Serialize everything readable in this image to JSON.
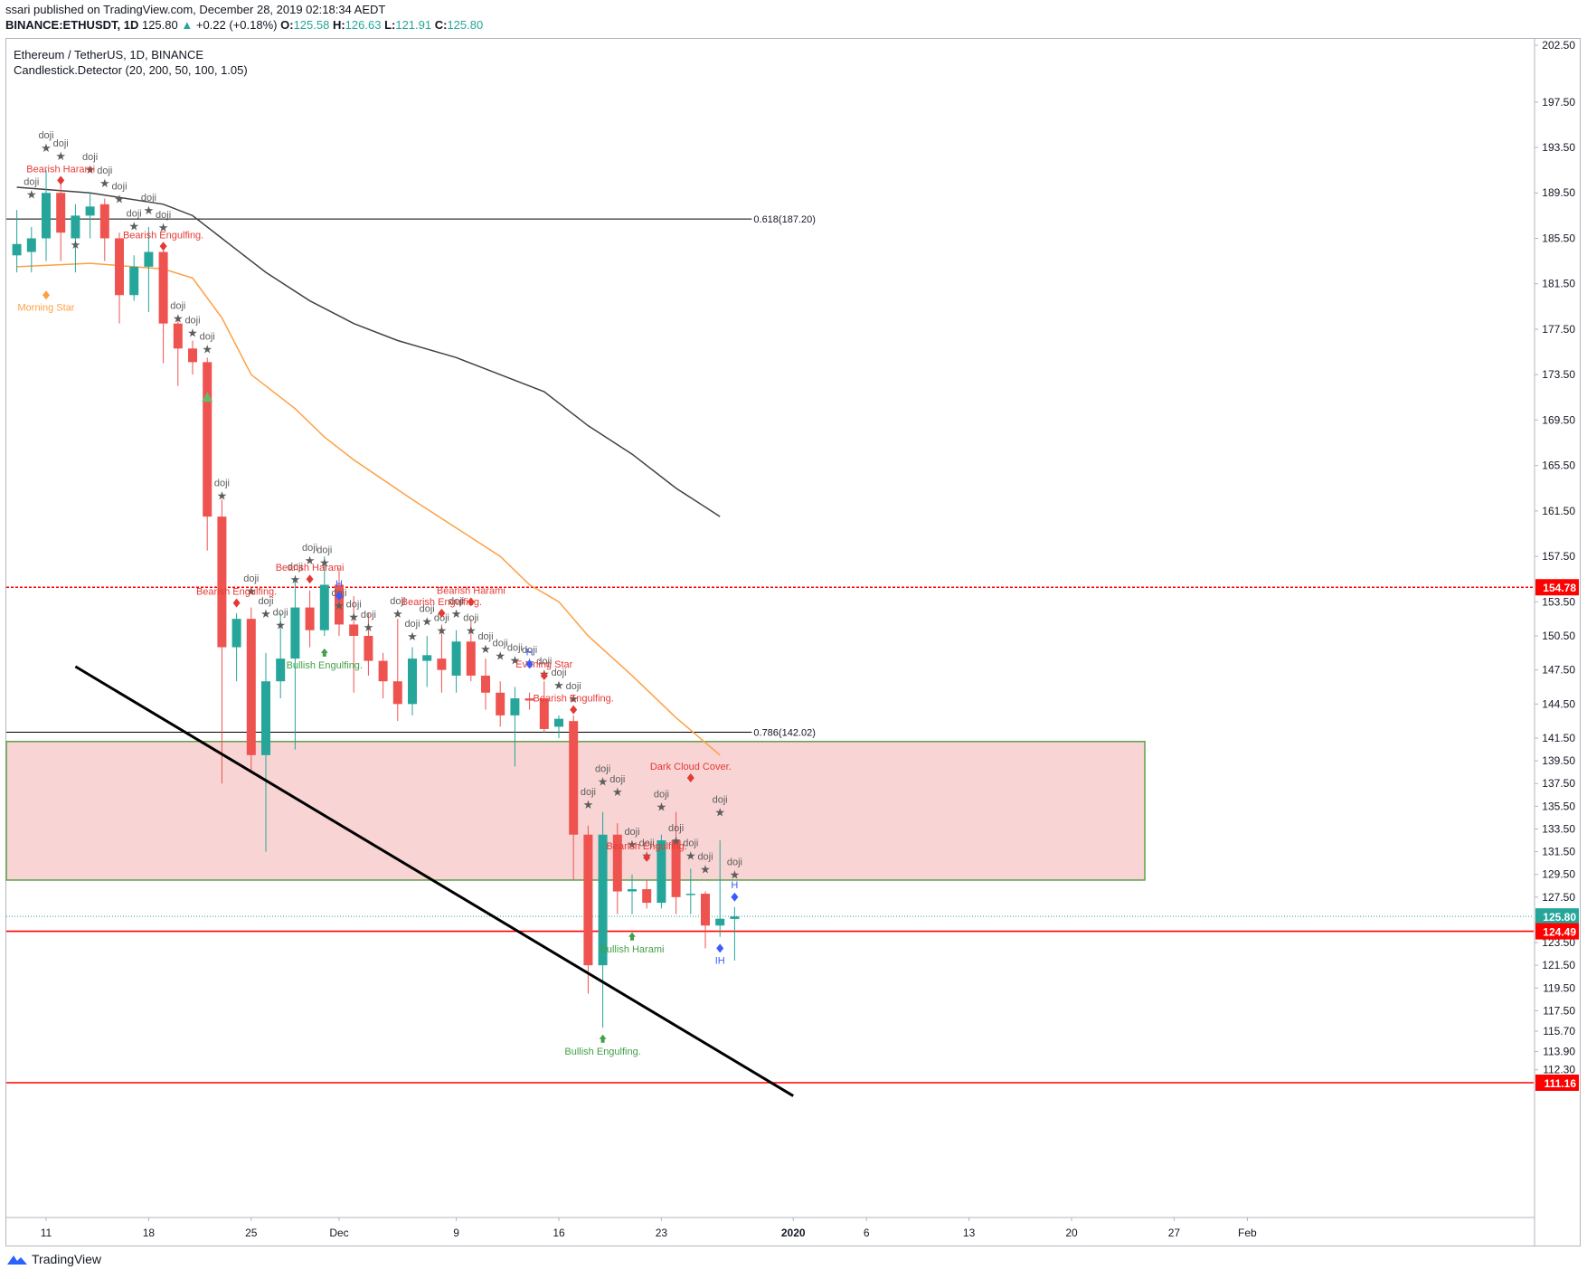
{
  "header": {
    "publisher_line": "ssari published on TradingView.com, December 28, 2019 02:18:34 AEDT",
    "symbol": "BINANCE:ETHUSDT, 1D",
    "last": "125.80",
    "change": "+0.22 (+0.18%)",
    "ohlc": [
      {
        "k": "O:",
        "v": "125.58"
      },
      {
        "k": "H:",
        "v": "126.63"
      },
      {
        "k": "L:",
        "v": "121.91"
      },
      {
        "k": "C:",
        "v": "125.80"
      }
    ]
  },
  "footer": {
    "brand": "TradingView"
  },
  "colors": {
    "bull": "#26a69a",
    "bear": "#ef5350",
    "ma_orange": "#ff9f43",
    "ma_dark": "#424242",
    "zone_fill": "#f5c6c6",
    "zone_border": "#5ea04a",
    "hline_red": "#ff0000",
    "pattern_red": "#e53935",
    "pattern_green": "#43a047",
    "pattern_blue": "#3d5afe",
    "doji_gray": "#5d5d5d"
  },
  "chart_data": {
    "type": "candlestick",
    "title": "Ethereum / TetherUS, 1D, BINANCE",
    "subtitle": "Candlestick.Detector (20, 200, 50, 100, 1.05)",
    "ylim": [
      110,
      204
    ],
    "y_ticks": [
      "202.50",
      "197.50",
      "193.50",
      "189.50",
      "185.50",
      "181.50",
      "177.50",
      "173.50",
      "169.50",
      "165.50",
      "161.50",
      "157.50",
      "153.50",
      "150.50",
      "147.50",
      "144.50",
      "141.50",
      "139.50",
      "137.50",
      "135.50",
      "133.50",
      "131.50",
      "129.50",
      "127.50",
      "123.50",
      "121.50",
      "119.50",
      "117.50",
      "115.70",
      "113.90",
      "112.30"
    ],
    "y_badges": [
      {
        "label": "154.78",
        "value": 154.78,
        "color": "#ff0000"
      },
      {
        "label": "125.80",
        "value": 125.8,
        "color": "#26a69a"
      },
      {
        "label": "124.49",
        "value": 124.49,
        "color": "#ff0000"
      },
      {
        "label": "111.16",
        "value": 111.16,
        "color": "#ff0000"
      }
    ],
    "x_ticks": [
      {
        "label": "11",
        "day": 0
      },
      {
        "label": "18",
        "day": 7
      },
      {
        "label": "25",
        "day": 14
      },
      {
        "label": "Dec",
        "day": 20
      },
      {
        "label": "9",
        "day": 28
      },
      {
        "label": "16",
        "day": 35
      },
      {
        "label": "23",
        "day": 42
      },
      {
        "label": "2020",
        "day": 51
      },
      {
        "label": "6",
        "day": 56
      },
      {
        "label": "13",
        "day": 63
      },
      {
        "label": "20",
        "day": 70
      },
      {
        "label": "27",
        "day": 77
      },
      {
        "label": "Feb",
        "day": 82
      }
    ],
    "candles": [
      {
        "d": -2,
        "o": 184.0,
        "h": 188.0,
        "l": 182.5,
        "c": 185.0
      },
      {
        "d": -1,
        "o": 184.3,
        "h": 186.5,
        "l": 182.5,
        "c": 185.5
      },
      {
        "d": 0,
        "o": 185.5,
        "h": 191.5,
        "l": 183.5,
        "c": 189.5
      },
      {
        "d": 1,
        "o": 189.5,
        "h": 190.5,
        "l": 183.5,
        "c": 186.0
      },
      {
        "d": 2,
        "o": 185.5,
        "h": 188.5,
        "l": 182.5,
        "c": 187.5
      },
      {
        "d": 3,
        "o": 187.5,
        "h": 189.5,
        "l": 185.5,
        "c": 188.3
      },
      {
        "d": 4,
        "o": 188.5,
        "h": 189.0,
        "l": 183.5,
        "c": 185.5
      },
      {
        "d": 5,
        "o": 185.5,
        "h": 186.0,
        "l": 178.0,
        "c": 180.5
      },
      {
        "d": 6,
        "o": 180.5,
        "h": 184.0,
        "l": 180.0,
        "c": 183.0
      },
      {
        "d": 7,
        "o": 183.0,
        "h": 186.5,
        "l": 179.0,
        "c": 184.3
      },
      {
        "d": 8,
        "o": 184.3,
        "h": 184.8,
        "l": 174.5,
        "c": 178.0
      },
      {
        "d": 9,
        "o": 178.0,
        "h": 178.5,
        "l": 172.5,
        "c": 175.8
      },
      {
        "d": 10,
        "o": 175.8,
        "h": 176.5,
        "l": 173.5,
        "c": 174.6
      },
      {
        "d": 11,
        "o": 174.6,
        "h": 175.0,
        "l": 158.0,
        "c": 161.0
      },
      {
        "d": 12,
        "o": 161.0,
        "h": 162.5,
        "l": 137.5,
        "c": 149.5
      },
      {
        "d": 13,
        "o": 149.5,
        "h": 152.5,
        "l": 146.5,
        "c": 152.0
      },
      {
        "d": 14,
        "o": 152.0,
        "h": 153.0,
        "l": 138.5,
        "c": 140.0
      },
      {
        "d": 15,
        "o": 140.0,
        "h": 149.0,
        "l": 131.5,
        "c": 146.5
      },
      {
        "d": 16,
        "o": 146.5,
        "h": 152.5,
        "l": 145.0,
        "c": 148.5
      },
      {
        "d": 17,
        "o": 148.5,
        "h": 155.5,
        "l": 140.5,
        "c": 153.0
      },
      {
        "d": 18,
        "o": 153.0,
        "h": 154.5,
        "l": 149.5,
        "c": 151.0
      },
      {
        "d": 19,
        "o": 151.0,
        "h": 157.5,
        "l": 150.5,
        "c": 155.0
      },
      {
        "d": 20,
        "o": 155.0,
        "h": 156.5,
        "l": 150.5,
        "c": 151.5
      },
      {
        "d": 21,
        "o": 151.5,
        "h": 154.0,
        "l": 145.5,
        "c": 150.5
      },
      {
        "d": 22,
        "o": 150.5,
        "h": 152.5,
        "l": 147.0,
        "c": 148.3
      },
      {
        "d": 23,
        "o": 148.3,
        "h": 149.0,
        "l": 145.0,
        "c": 146.5
      },
      {
        "d": 24,
        "o": 146.5,
        "h": 152.0,
        "l": 143.0,
        "c": 144.5
      },
      {
        "d": 25,
        "o": 144.5,
        "h": 149.5,
        "l": 143.5,
        "c": 148.5
      },
      {
        "d": 26,
        "o": 148.3,
        "h": 150.5,
        "l": 146.0,
        "c": 148.8
      },
      {
        "d": 27,
        "o": 148.5,
        "h": 151.5,
        "l": 145.5,
        "c": 147.5
      },
      {
        "d": 28,
        "o": 147.0,
        "h": 151.0,
        "l": 145.5,
        "c": 150.0
      },
      {
        "d": 29,
        "o": 150.0,
        "h": 152.0,
        "l": 146.5,
        "c": 147.0
      },
      {
        "d": 30,
        "o": 147.0,
        "h": 148.5,
        "l": 144.0,
        "c": 145.5
      },
      {
        "d": 31,
        "o": 145.5,
        "h": 146.5,
        "l": 142.5,
        "c": 143.5
      },
      {
        "d": 32,
        "o": 143.5,
        "h": 146.0,
        "l": 139.0,
        "c": 145.0
      },
      {
        "d": 33,
        "o": 145.0,
        "h": 145.5,
        "l": 144.0,
        "c": 144.8
      },
      {
        "d": 34,
        "o": 145.0,
        "h": 146.5,
        "l": 142.0,
        "c": 142.3
      },
      {
        "d": 35,
        "o": 142.5,
        "h": 143.5,
        "l": 141.5,
        "c": 143.2
      },
      {
        "d": 36,
        "o": 143.0,
        "h": 143.5,
        "l": 129.0,
        "c": 133.0
      },
      {
        "d": 37,
        "o": 133.0,
        "h": 133.8,
        "l": 119.0,
        "c": 121.5
      },
      {
        "d": 38,
        "o": 121.5,
        "h": 135.0,
        "l": 116.0,
        "c": 133.0
      },
      {
        "d": 39,
        "o": 133.0,
        "h": 134.0,
        "l": 126.0,
        "c": 128.0
      },
      {
        "d": 40,
        "o": 128.0,
        "h": 129.5,
        "l": 126.0,
        "c": 128.2
      },
      {
        "d": 41,
        "o": 128.2,
        "h": 129.0,
        "l": 126.5,
        "c": 127.0
      },
      {
        "d": 42,
        "o": 127.0,
        "h": 133.0,
        "l": 126.5,
        "c": 132.5
      },
      {
        "d": 43,
        "o": 132.5,
        "h": 135.0,
        "l": 126.0,
        "c": 127.5
      },
      {
        "d": 44,
        "o": 127.8,
        "h": 130.0,
        "l": 126.0,
        "c": 127.8
      },
      {
        "d": 45,
        "o": 127.8,
        "h": 128.0,
        "l": 123.0,
        "c": 125.0
      },
      {
        "d": 46,
        "o": 125.0,
        "h": 132.5,
        "l": 124.0,
        "c": 125.6
      },
      {
        "d": 47,
        "o": 125.58,
        "h": 126.63,
        "l": 121.91,
        "c": 125.8
      }
    ],
    "moving_averages": [
      {
        "color": "#ff9f43",
        "points": [
          [
            -2,
            183.0
          ],
          [
            3,
            183.3
          ],
          [
            8,
            182.8
          ],
          [
            10,
            182.0
          ],
          [
            12,
            178.5
          ],
          [
            14,
            173.5
          ],
          [
            17,
            170.5
          ],
          [
            19,
            168.0
          ],
          [
            21,
            166.0
          ],
          [
            25,
            162.5
          ],
          [
            28,
            160.0
          ],
          [
            31,
            157.5
          ],
          [
            33,
            155.0
          ],
          [
            35,
            153.5
          ],
          [
            37,
            150.5
          ],
          [
            40,
            147.0
          ],
          [
            43,
            143.3
          ],
          [
            46,
            140.0
          ]
        ]
      },
      {
        "color": "#424242",
        "points": [
          [
            -2,
            190.0
          ],
          [
            3,
            189.5
          ],
          [
            8,
            188.5
          ],
          [
            10,
            187.5
          ],
          [
            12,
            185.5
          ],
          [
            15,
            182.5
          ],
          [
            18,
            180.0
          ],
          [
            21,
            178.0
          ],
          [
            24,
            176.5
          ],
          [
            28,
            175.0
          ],
          [
            31,
            173.5
          ],
          [
            34,
            172.0
          ],
          [
            37,
            169.0
          ],
          [
            40,
            166.5
          ],
          [
            43,
            163.5
          ],
          [
            46,
            161.0
          ]
        ]
      }
    ],
    "horizontal_lines": [
      {
        "value": 187.2,
        "color": "#000000",
        "style": "solid",
        "label": "0.618(187.20)",
        "day_end": 42
      },
      {
        "value": 154.78,
        "color": "#ff0000",
        "style": "dotted"
      },
      {
        "value": 142.02,
        "color": "#000000",
        "style": "solid",
        "label": "0.786(142.02)",
        "day_end": 42
      },
      {
        "value": 125.8,
        "color": "#26a69a",
        "style": "dotted"
      },
      {
        "value": 124.49,
        "color": "#ff0000",
        "style": "solid"
      },
      {
        "value": 111.16,
        "color": "#ff0000",
        "style": "solid"
      }
    ],
    "zone": {
      "day_from": -3,
      "day_to": 75,
      "top": 141.2,
      "bottom": 129.0
    },
    "trendline": {
      "from": [
        2,
        147.8
      ],
      "to": [
        51,
        110.0
      ]
    },
    "annotations": [
      {
        "d": -1,
        "v": 189.4,
        "t": "doji",
        "k": "doji"
      },
      {
        "d": 0,
        "v": 193.5,
        "t": "doji",
        "k": "doji"
      },
      {
        "d": 1,
        "v": 192.8,
        "t": "doji",
        "k": "doji"
      },
      {
        "d": 3,
        "v": 191.6,
        "t": "doji",
        "k": "doji"
      },
      {
        "d": 4,
        "v": 190.4,
        "t": "doji",
        "k": "doji"
      },
      {
        "d": 5,
        "v": 189.0,
        "t": "doji",
        "k": "doji"
      },
      {
        "d": 7,
        "v": 188.0,
        "t": "doji",
        "k": "doji"
      },
      {
        "d": 6,
        "v": 186.6,
        "t": "doji",
        "k": "doji"
      },
      {
        "d": 8,
        "v": 186.5,
        "t": "doji",
        "k": "doji"
      },
      {
        "d": 1,
        "v": 190.6,
        "t": "Bearish Harami",
        "k": "bear"
      },
      {
        "d": 8,
        "v": 184.8,
        "t": "Bearish Engulfing.",
        "k": "bear"
      },
      {
        "d": 0,
        "v": 180.5,
        "t": "Morning Star",
        "k": "mstar"
      },
      {
        "d": 2,
        "v": 185.0,
        "t": "",
        "k": "star"
      },
      {
        "d": 9,
        "v": 178.5,
        "t": "doji",
        "k": "doji"
      },
      {
        "d": 10,
        "v": 177.2,
        "t": "doji",
        "k": "doji"
      },
      {
        "d": 11,
        "v": 175.8,
        "t": "doji",
        "k": "doji"
      },
      {
        "d": 12,
        "v": 162.9,
        "t": "doji",
        "k": "doji"
      },
      {
        "d": 14,
        "v": 154.5,
        "t": "doji",
        "k": "doji"
      },
      {
        "d": 15,
        "v": 152.5,
        "t": "doji",
        "k": "doji"
      },
      {
        "d": 16,
        "v": 151.5,
        "t": "doji",
        "k": "doji"
      },
      {
        "d": 17,
        "v": 155.5,
        "t": "doji",
        "k": "doji"
      },
      {
        "d": 18,
        "v": 157.2,
        "t": "doji",
        "k": "doji"
      },
      {
        "d": 19,
        "v": 157.0,
        "t": "doji",
        "k": "doji"
      },
      {
        "d": 20,
        "v": 153.2,
        "t": "doji",
        "k": "doji"
      },
      {
        "d": 21,
        "v": 152.2,
        "t": "doji",
        "k": "doji"
      },
      {
        "d": 22,
        "v": 151.3,
        "t": "doji",
        "k": "doji"
      },
      {
        "d": 24,
        "v": 152.5,
        "t": "doji",
        "k": "doji"
      },
      {
        "d": 25,
        "v": 150.5,
        "t": "doji",
        "k": "doji"
      },
      {
        "d": 26,
        "v": 151.8,
        "t": "doji",
        "k": "doji"
      },
      {
        "d": 27,
        "v": 151.0,
        "t": "doji",
        "k": "doji"
      },
      {
        "d": 28,
        "v": 152.5,
        "t": "doji",
        "k": "doji"
      },
      {
        "d": 29,
        "v": 151.0,
        "t": "doji",
        "k": "doji"
      },
      {
        "d": 30,
        "v": 149.4,
        "t": "doji",
        "k": "doji"
      },
      {
        "d": 31,
        "v": 148.8,
        "t": "doji",
        "k": "doji"
      },
      {
        "d": 32,
        "v": 148.4,
        "t": "doji",
        "k": "doji"
      },
      {
        "d": 33,
        "v": 148.2,
        "t": "doji",
        "k": "doji"
      },
      {
        "d": 34,
        "v": 147.2,
        "t": "doji",
        "k": "doji"
      },
      {
        "d": 35,
        "v": 146.2,
        "t": "doji",
        "k": "doji"
      },
      {
        "d": 36,
        "v": 145.0,
        "t": "doji",
        "k": "doji"
      },
      {
        "d": 13,
        "v": 153.4,
        "t": "Bearish Engulfing.",
        "k": "bear"
      },
      {
        "d": 18,
        "v": 155.5,
        "t": "Bearish Harami",
        "k": "bear"
      },
      {
        "d": 27,
        "v": 152.5,
        "t": "Bearish Engulfing.",
        "k": "bear"
      },
      {
        "d": 29,
        "v": 153.5,
        "t": "Bearish Harami",
        "k": "bear"
      },
      {
        "d": 34,
        "v": 147.0,
        "t": "Evening Star",
        "k": "bear"
      },
      {
        "d": 36,
        "v": 144.0,
        "t": "Bearish Engulfing.",
        "k": "bear"
      },
      {
        "d": 20,
        "v": 154.0,
        "t": "H",
        "k": "blue"
      },
      {
        "d": 33,
        "v": 148.0,
        "t": "H",
        "k": "blue"
      },
      {
        "d": 19,
        "v": 149.0,
        "t": "Bullish Engulfing.",
        "k": "bull"
      },
      {
        "d": 11,
        "v": 171.5,
        "t": "",
        "k": "tri"
      },
      {
        "d": 37,
        "v": 135.7,
        "t": "doji",
        "k": "doji"
      },
      {
        "d": 38,
        "v": 137.7,
        "t": "doji",
        "k": "doji"
      },
      {
        "d": 39,
        "v": 136.8,
        "t": "doji",
        "k": "doji"
      },
      {
        "d": 40,
        "v": 132.2,
        "t": "doji",
        "k": "doji"
      },
      {
        "d": 41,
        "v": 131.2,
        "t": "doji",
        "k": "doji"
      },
      {
        "d": 42,
        "v": 135.5,
        "t": "doji",
        "k": "doji"
      },
      {
        "d": 43,
        "v": 132.5,
        "t": "doji",
        "k": "doji"
      },
      {
        "d": 44,
        "v": 131.2,
        "t": "doji",
        "k": "doji"
      },
      {
        "d": 45,
        "v": 130.0,
        "t": "doji",
        "k": "doji"
      },
      {
        "d": 46,
        "v": 135.0,
        "t": "doji",
        "k": "doji"
      },
      {
        "d": 47,
        "v": 129.5,
        "t": "doji",
        "k": "doji"
      },
      {
        "d": 44,
        "v": 138.0,
        "t": "Dark Cloud Cover.",
        "k": "bear"
      },
      {
        "d": 41,
        "v": 131.0,
        "t": "Bearish Engulfing.",
        "k": "bear"
      },
      {
        "d": 47,
        "v": 127.5,
        "t": "H",
        "k": "blue"
      },
      {
        "d": 46,
        "v": 123.0,
        "t": "IH",
        "k": "blueu"
      },
      {
        "d": 40,
        "v": 124.0,
        "t": "Bullish Harami",
        "k": "bull"
      },
      {
        "d": 38,
        "v": 115.0,
        "t": "Bullish Engulfing.",
        "k": "bull"
      }
    ]
  }
}
